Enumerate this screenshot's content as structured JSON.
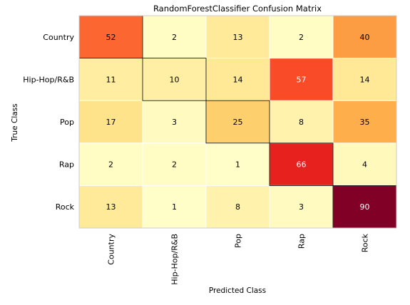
{
  "chart_data": {
    "type": "heatmap",
    "title": "RandomForestClassifier Confusion Matrix",
    "xlabel": "Predicted Class",
    "ylabel": "True Class",
    "x_categories": [
      "Country",
      "Hip-Hop/R&B",
      "Pop",
      "Rap",
      "Rock"
    ],
    "y_categories": [
      "Country",
      "Hip-Hop/R&B",
      "Pop",
      "Rap",
      "Rock"
    ],
    "values": [
      [
        52,
        2,
        13,
        2,
        40
      ],
      [
        11,
        10,
        14,
        57,
        14
      ],
      [
        17,
        3,
        25,
        8,
        35
      ],
      [
        2,
        2,
        1,
        66,
        4
      ],
      [
        13,
        1,
        8,
        3,
        90
      ]
    ],
    "colormap": "YlOrRd",
    "diagonal_outlined": true,
    "grid": true
  },
  "colors": {
    "cmap_stops": [
      "#ffffcc",
      "#ffeda0",
      "#fed976",
      "#feb24c",
      "#fd8d3c",
      "#fc4e2a",
      "#e31a1c",
      "#bd0026",
      "#800026"
    ],
    "frame": "#cccccc",
    "grid": "#ffffff",
    "diagonal_border": "#000000",
    "text_dark": "#000000",
    "text_light": "#ffffff"
  }
}
